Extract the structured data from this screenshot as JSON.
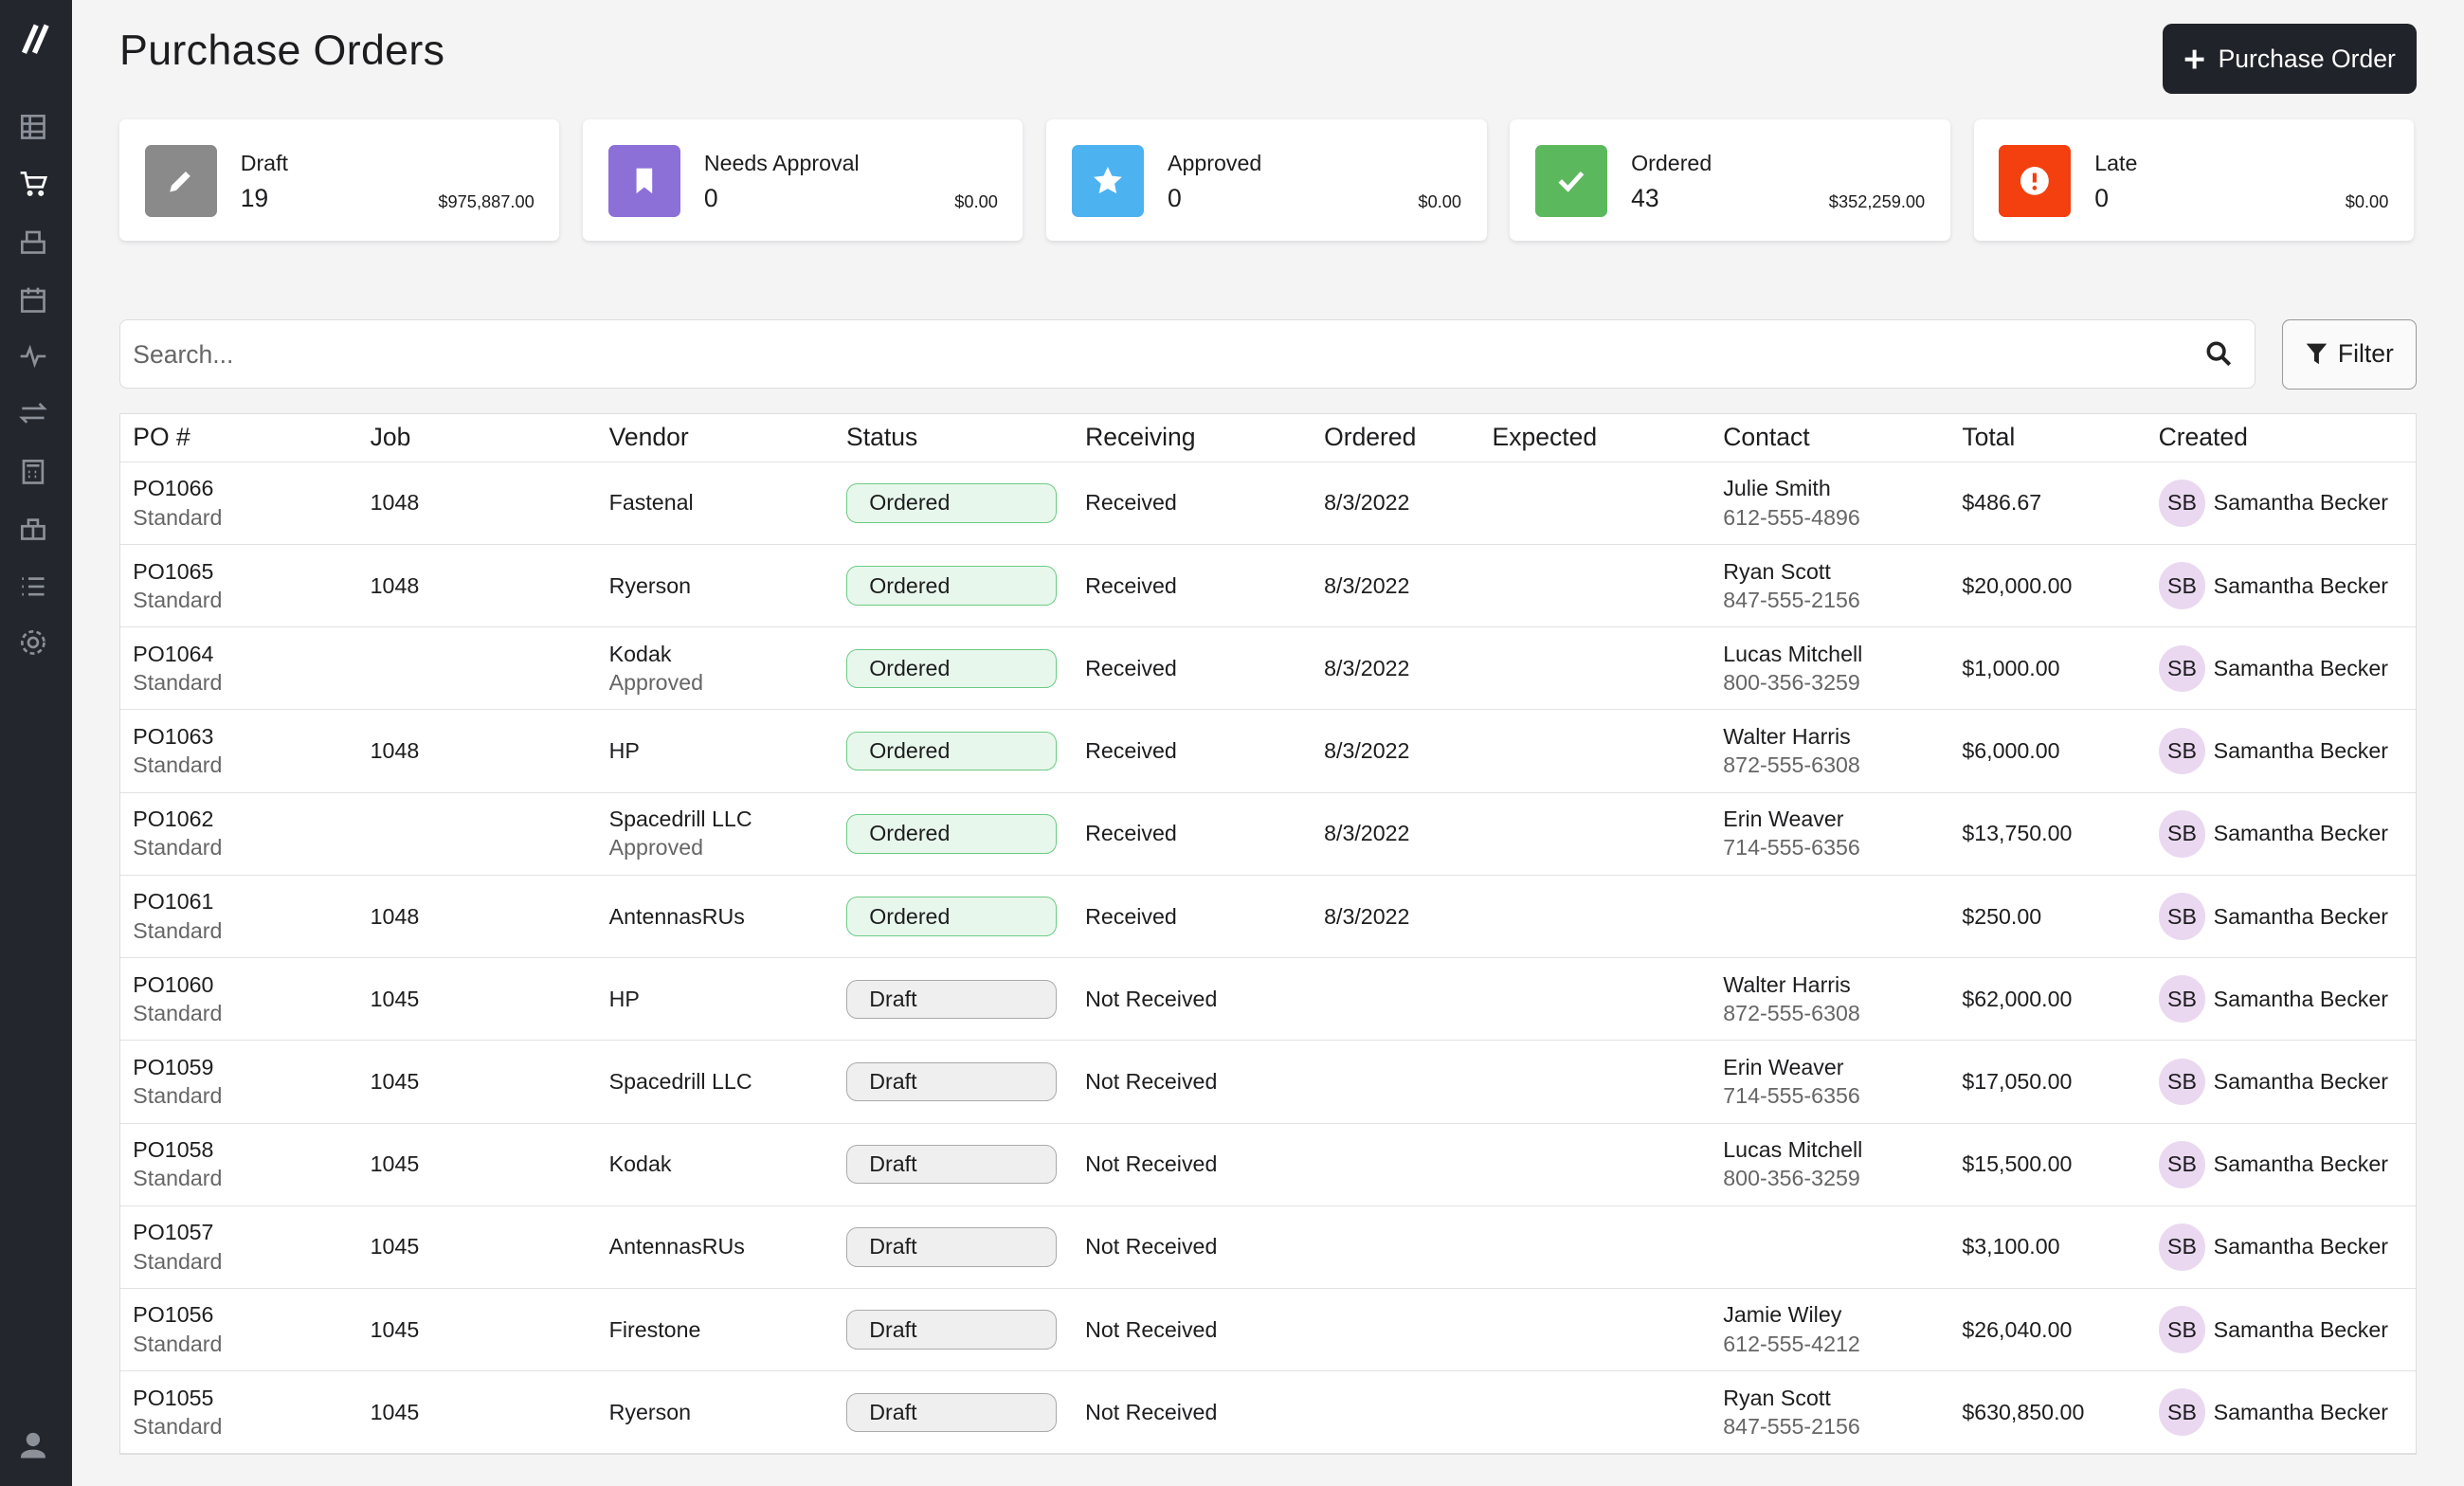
{
  "header": {
    "title": "Purchase Orders",
    "new_button": "Purchase Order"
  },
  "cards": [
    {
      "label": "Draft",
      "count": "19",
      "amount": "$975,887.00"
    },
    {
      "label": "Needs Approval",
      "count": "0",
      "amount": "$0.00"
    },
    {
      "label": "Approved",
      "count": "0",
      "amount": "$0.00"
    },
    {
      "label": "Ordered",
      "count": "43",
      "amount": "$352,259.00"
    },
    {
      "label": "Late",
      "count": "0",
      "amount": "$0.00"
    }
  ],
  "search": {
    "placeholder": "Search...",
    "filter": "Filter"
  },
  "table": {
    "columns": [
      "PO #",
      "Job",
      "Vendor",
      "Status",
      "Receiving",
      "Ordered",
      "Expected",
      "Contact",
      "Total",
      "Created"
    ],
    "rows": [
      {
        "po": "PO1066",
        "type": "Standard",
        "job": "1048",
        "vendor": "Fastenal",
        "vendor_note": null,
        "status": "Ordered",
        "receiving": "Received",
        "ordered": "8/3/2022",
        "contact": "Julie Smith",
        "phone": "612-555-4896",
        "total": "$486.67",
        "initials": "SB",
        "created": "Samantha Becker"
      },
      {
        "po": "PO1065",
        "type": "Standard",
        "job": "1048",
        "vendor": "Ryerson",
        "vendor_note": null,
        "status": "Ordered",
        "receiving": "Received",
        "ordered": "8/3/2022",
        "contact": "Ryan Scott",
        "phone": "847-555-2156",
        "total": "$20,000.00",
        "initials": "SB",
        "created": "Samantha Becker"
      },
      {
        "po": "PO1064",
        "type": "Standard",
        "job": null,
        "vendor": "Kodak",
        "vendor_note": "Approved",
        "status": "Ordered",
        "receiving": "Received",
        "ordered": "8/3/2022",
        "contact": "Lucas Mitchell",
        "phone": "800-356-3259",
        "total": "$1,000.00",
        "initials": "SB",
        "created": "Samantha Becker"
      },
      {
        "po": "PO1063",
        "type": "Standard",
        "job": "1048",
        "vendor": "HP",
        "vendor_note": null,
        "status": "Ordered",
        "receiving": "Received",
        "ordered": "8/3/2022",
        "contact": "Walter Harris",
        "phone": "872-555-6308",
        "total": "$6,000.00",
        "initials": "SB",
        "created": "Samantha Becker"
      },
      {
        "po": "PO1062",
        "type": "Standard",
        "job": null,
        "vendor": "Spacedrill LLC",
        "vendor_note": "Approved",
        "status": "Ordered",
        "receiving": "Received",
        "ordered": "8/3/2022",
        "contact": "Erin Weaver",
        "phone": "714-555-6356",
        "total": "$13,750.00",
        "initials": "SB",
        "created": "Samantha Becker"
      },
      {
        "po": "PO1061",
        "type": "Standard",
        "job": "1048",
        "vendor": "AntennasRUs",
        "vendor_note": null,
        "status": "Ordered",
        "receiving": "Received",
        "ordered": "8/3/2022",
        "contact": null,
        "phone": null,
        "total": "$250.00",
        "initials": "SB",
        "created": "Samantha Becker"
      },
      {
        "po": "PO1060",
        "type": "Standard",
        "job": "1045",
        "vendor": "HP",
        "vendor_note": null,
        "status": "Draft",
        "receiving": "Not Received",
        "ordered": null,
        "contact": "Walter Harris",
        "phone": "872-555-6308",
        "total": "$62,000.00",
        "initials": "SB",
        "created": "Samantha Becker"
      },
      {
        "po": "PO1059",
        "type": "Standard",
        "job": "1045",
        "vendor": "Spacedrill LLC",
        "vendor_note": null,
        "status": "Draft",
        "receiving": "Not Received",
        "ordered": null,
        "contact": "Erin Weaver",
        "phone": "714-555-6356",
        "total": "$17,050.00",
        "initials": "SB",
        "created": "Samantha Becker"
      },
      {
        "po": "PO1058",
        "type": "Standard",
        "job": "1045",
        "vendor": "Kodak",
        "vendor_note": null,
        "status": "Draft",
        "receiving": "Not Received",
        "ordered": null,
        "contact": "Lucas Mitchell",
        "phone": "800-356-3259",
        "total": "$15,500.00",
        "initials": "SB",
        "created": "Samantha Becker"
      },
      {
        "po": "PO1057",
        "type": "Standard",
        "job": "1045",
        "vendor": "AntennasRUs",
        "vendor_note": null,
        "status": "Draft",
        "receiving": "Not Received",
        "ordered": null,
        "contact": null,
        "phone": null,
        "total": "$3,100.00",
        "initials": "SB",
        "created": "Samantha Becker"
      },
      {
        "po": "PO1056",
        "type": "Standard",
        "job": "1045",
        "vendor": "Firestone",
        "vendor_note": null,
        "status": "Draft",
        "receiving": "Not Received",
        "ordered": null,
        "contact": "Jamie Wiley",
        "phone": "612-555-4212",
        "total": "$26,040.00",
        "initials": "SB",
        "created": "Samantha Becker"
      },
      {
        "po": "PO1055",
        "type": "Standard",
        "job": "1045",
        "vendor": "Ryerson",
        "vendor_note": null,
        "status": "Draft",
        "receiving": "Not Received",
        "ordered": null,
        "contact": "Ryan Scott",
        "phone": "847-555-2156",
        "total": "$630,850.00",
        "initials": "SB",
        "created": "Samantha Becker"
      }
    ]
  }
}
